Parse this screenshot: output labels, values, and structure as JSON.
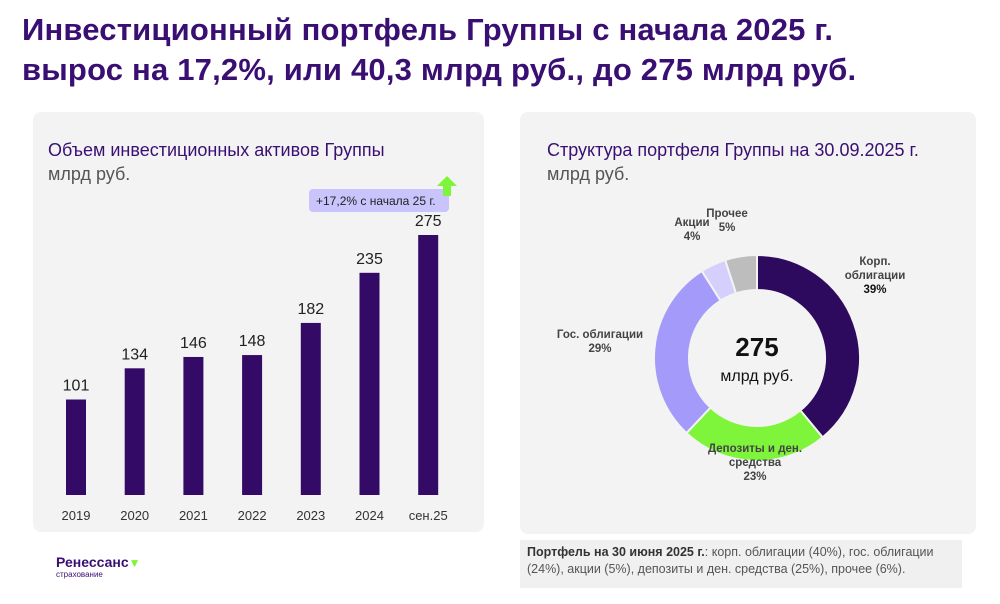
{
  "title_line1": "Инвестиционный портфель Группы с начала 2025 г.",
  "title_line2": "вырос на 17,2%, или 40,3 млрд руб., до 275 млрд руб.",
  "colors": {
    "brand": "#3a0f73",
    "bar": "#330a66",
    "accent_green": "#7ef53a"
  },
  "chart_data": [
    {
      "type": "bar",
      "title": "Объем инвестиционных активов Группы",
      "subtitle": "млрд руб.",
      "categories": [
        "2019",
        "2020",
        "2021",
        "2022",
        "2023",
        "2024",
        "сен.25"
      ],
      "values": [
        101,
        134,
        146,
        148,
        182,
        235,
        275
      ],
      "annotation": "+17,2% с начала 25 г.",
      "annotation_icon": "arrow-up-icon",
      "grid": false
    },
    {
      "type": "pie",
      "donut": true,
      "title": "Структура портфеля Группы на 30.09.2025 г.",
      "subtitle": "млрд руб.",
      "center_value": "275",
      "center_unit": "млрд руб.",
      "slices": [
        {
          "label_lines": [
            "Корп.",
            "облигации"
          ],
          "pct_label": "39%",
          "value": 39,
          "color": "#2e0a5f"
        },
        {
          "label_lines": [
            "Депозиты и ден.",
            "средства"
          ],
          "pct_label": "23%",
          "value": 23,
          "color": "#7ef53a"
        },
        {
          "label_lines": [
            "Гос. облигации"
          ],
          "pct_label": "29%",
          "value": 29,
          "color": "#a39afa"
        },
        {
          "label_lines": [
            "Акции"
          ],
          "pct_label": "4%",
          "value": 4,
          "color": "#d4cffd"
        },
        {
          "label_lines": [
            "Прочее"
          ],
          "pct_label": "5%",
          "value": 5,
          "color": "#bdbdbd"
        }
      ]
    }
  ],
  "note": {
    "bold": "Портфель на 30 июня 2025 г.",
    "text": ": корп. облигации (40%), гос. облигации (24%), акции (5%), депозиты и ден. средства (25%), прочее (6%)."
  },
  "logo": {
    "name": "Ренессанс",
    "sub": "страхование"
  }
}
